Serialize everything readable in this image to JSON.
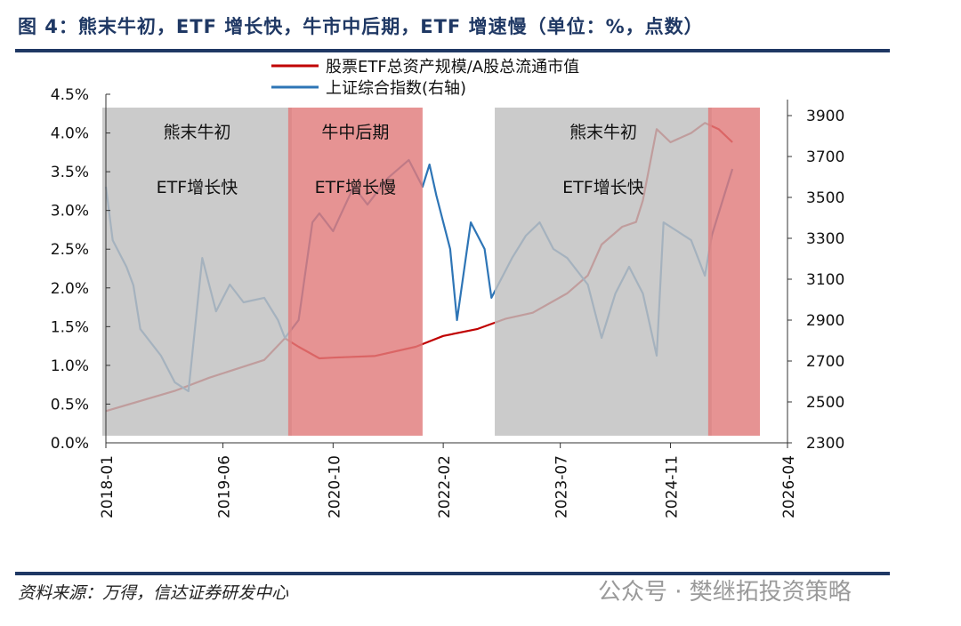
{
  "title": "图 4：熊末牛初，ETF 增长快，牛市中后期，ETF 增速慢（单位：%，点数）",
  "source": "资料来源：万得，信达证券研发中心",
  "watermark": "公众号 · 樊继拓投资策略",
  "chart_data": {
    "type": "line",
    "title": "图 4：熊末牛初，ETF 增长快，牛市中后期，ETF 增速慢（单位：%，点数）",
    "x_ticks": [
      "2018-01",
      "2019-06",
      "2020-10",
      "2022-02",
      "2023-07",
      "2024-11",
      "2026-04"
    ],
    "x_range": [
      "2018-01",
      "2026-04"
    ],
    "y_left": {
      "range": [
        0,
        4.5
      ],
      "ticks": [
        "0.0%",
        "0.5%",
        "1.0%",
        "1.5%",
        "2.0%",
        "2.5%",
        "3.0%",
        "3.5%",
        "4.0%",
        "4.5%"
      ]
    },
    "y_right": {
      "range": [
        2300,
        3900
      ],
      "ticks": [
        "2300",
        "2500",
        "2700",
        "2900",
        "3100",
        "3300",
        "3500",
        "3700",
        "3900"
      ]
    },
    "legend_placement": "top-center",
    "series": [
      {
        "name": "股票ETF总资产规模/A股总流通市值",
        "axis": "left",
        "color": "#c00000",
        "x": [
          "2018-01",
          "2018-11",
          "2019-04",
          "2019-12",
          "2020-03",
          "2020-05",
          "2020-08",
          "2020-10",
          "2021-04",
          "2021-10",
          "2022-02",
          "2022-07",
          "2022-11",
          "2023-03",
          "2023-08",
          "2023-11",
          "2024-01",
          "2024-04",
          "2024-06",
          "2024-07",
          "2024-09",
          "2024-11",
          "2025-02",
          "2025-04",
          "2025-06",
          "2025-08"
        ],
        "y": [
          0.41,
          0.67,
          0.84,
          1.07,
          1.35,
          1.24,
          1.09,
          1.1,
          1.12,
          1.24,
          1.38,
          1.47,
          1.6,
          1.68,
          1.93,
          2.16,
          2.56,
          2.79,
          2.85,
          3.13,
          4.05,
          3.88,
          4.0,
          4.13,
          4.05,
          3.88
        ]
      },
      {
        "name": "上证综合指数(右轴)",
        "axis": "right",
        "color": "#2e75b6",
        "x": [
          "2018-01",
          "2018-02",
          "2018-04",
          "2018-05",
          "2018-06",
          "2018-09",
          "2018-11",
          "2019-01",
          "2019-03",
          "2019-05",
          "2019-07",
          "2019-09",
          "2019-12",
          "2020-02",
          "2020-03",
          "2020-05",
          "2020-07",
          "2020-08",
          "2020-10",
          "2021-01",
          "2021-03",
          "2021-06",
          "2021-09",
          "2021-11",
          "2021-12",
          "2022-01",
          "2022-03",
          "2022-04",
          "2022-06",
          "2022-08",
          "2022-09",
          "2022-10",
          "2022-12",
          "2023-02",
          "2023-04",
          "2023-06",
          "2023-08",
          "2023-11",
          "2024-01",
          "2024-03",
          "2024-05",
          "2024-07",
          "2024-09",
          "2024-10",
          "2024-12",
          "2025-02",
          "2025-04",
          "2025-05",
          "2025-06",
          "2025-08"
        ],
        "y": [
          3552,
          3290,
          3160,
          3070,
          2856,
          2726,
          2596,
          2552,
          3204,
          2943,
          3074,
          2987,
          3009,
          2900,
          2813,
          2900,
          3378,
          3422,
          3335,
          3552,
          3465,
          3596,
          3683,
          3552,
          3661,
          3509,
          3248,
          2900,
          3378,
          3248,
          3009,
          3074,
          3204,
          3313,
          3378,
          3248,
          3204,
          3074,
          2813,
          3030,
          3161,
          3030,
          2726,
          3378,
          3335,
          3291,
          3117,
          3313,
          3422,
          3639
        ]
      }
    ],
    "shaded_periods": [
      {
        "from": "2018-01",
        "to": "2020-04",
        "color": "#bfbfbf",
        "labels": [
          "熊末牛初",
          "ETF增长快"
        ]
      },
      {
        "from": "2020-04",
        "to": "2021-11",
        "color": "#e07b7b",
        "labels": [
          "牛中后期",
          "ETF增长慢"
        ]
      },
      {
        "from": "2022-10",
        "to": "2025-05",
        "color": "#bfbfbf",
        "labels": [
          "熊末牛初",
          "ETF增长快"
        ]
      },
      {
        "from": "2025-05",
        "to": "2025-12",
        "color": "#e07b7b",
        "labels": []
      }
    ]
  }
}
